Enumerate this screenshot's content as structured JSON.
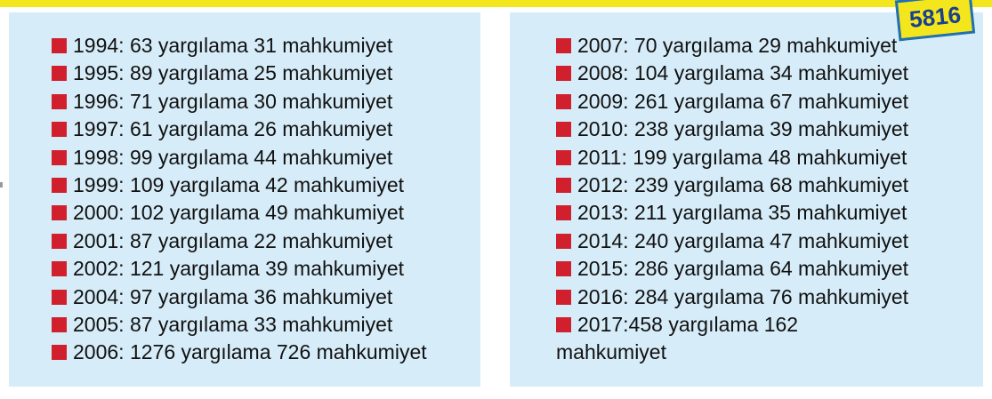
{
  "badge": "5816",
  "left": {
    "items": [
      "1994: 63 yargılama 31 mahkumiyet",
      "1995: 89 yargılama 25 mahkumiyet",
      "1996: 71 yargılama 30 mahkumiyet",
      "1997: 61 yargılama 26 mahkumiyet",
      "1998: 99 yargılama 44 mahkumiyet",
      "1999: 109 yargılama 42 mahkumiyet",
      "2000: 102 yargılama 49 mahkumiyet",
      "2001: 87 yargılama 22 mahkumiyet",
      "2002: 121 yargılama 39 mahkumiyet",
      "2004: 97 yargılama 36 mahkumiyet",
      "2005: 87 yargılama 33 mahkumiyet",
      "2006: 1276 yargılama 726 mahkumiyet"
    ]
  },
  "right": {
    "items": [
      "2007: 70 yargılama 29 mahkumiyet",
      "2008: 104 yargılama 34 mahkumiyet",
      "2009: 261 yargılama 67 mahkumiyet",
      "2010: 238 yargılama 39 mahkumiyet",
      "2011: 199 yargılama 48 mahkumiyet",
      "2012: 239 yargılama 68 mahkumiyet",
      "2013: 211 yargılama 35 mahkumiyet",
      "2014: 240 yargılama 47 mahkumiyet",
      "2015: 286 yargılama 64 mahkumiyet",
      "2016: 284 yargılama 76 mahkumiyet",
      "2017:458 yargılama 162 mahkumiyet"
    ]
  }
}
